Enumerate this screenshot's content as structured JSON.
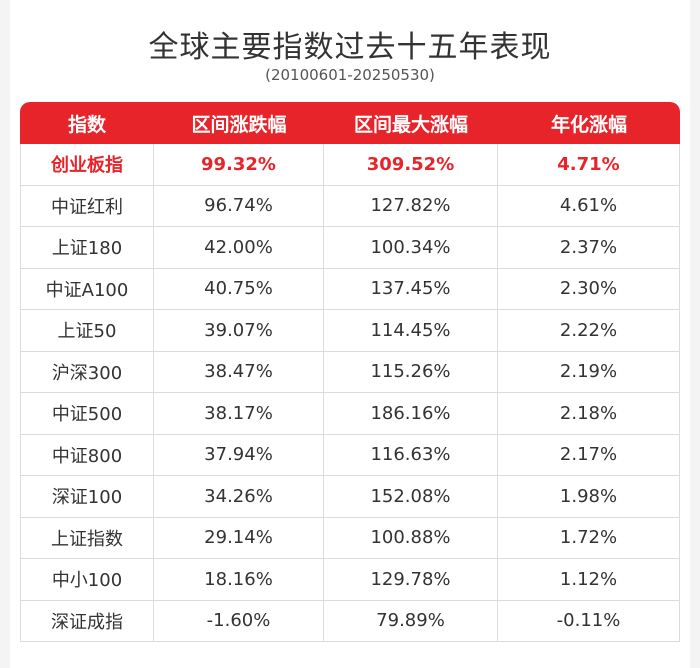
{
  "title": "全球主要指数过去十五年表现",
  "subtitle": "(20100601-20250530)",
  "colors": {
    "header_bg": "#e8242b",
    "highlight_text": "#e8242b"
  },
  "table": {
    "headers": [
      "指数",
      "区间涨跌幅",
      "区间最大涨幅",
      "年化涨幅"
    ],
    "rows": [
      [
        "创业板指",
        "99.32%",
        "309.52%",
        "4.71%"
      ],
      [
        "中证红利",
        "96.74%",
        "127.82%",
        "4.61%"
      ],
      [
        "上证180",
        "42.00%",
        "100.34%",
        "2.37%"
      ],
      [
        "中证A100",
        "40.75%",
        "137.45%",
        "2.30%"
      ],
      [
        "上证50",
        "39.07%",
        "114.45%",
        "2.22%"
      ],
      [
        "沪深300",
        "38.47%",
        "115.26%",
        "2.19%"
      ],
      [
        "中证500",
        "38.17%",
        "186.16%",
        "2.18%"
      ],
      [
        "中证800",
        "37.94%",
        "116.63%",
        "2.17%"
      ],
      [
        "深证100",
        "34.26%",
        "152.08%",
        "1.98%"
      ],
      [
        "上证指数",
        "29.14%",
        "100.88%",
        "1.72%"
      ],
      [
        "中小100",
        "18.16%",
        "129.78%",
        "1.12%"
      ],
      [
        "深证成指",
        "-1.60%",
        "79.89%",
        "-0.11%"
      ]
    ]
  }
}
